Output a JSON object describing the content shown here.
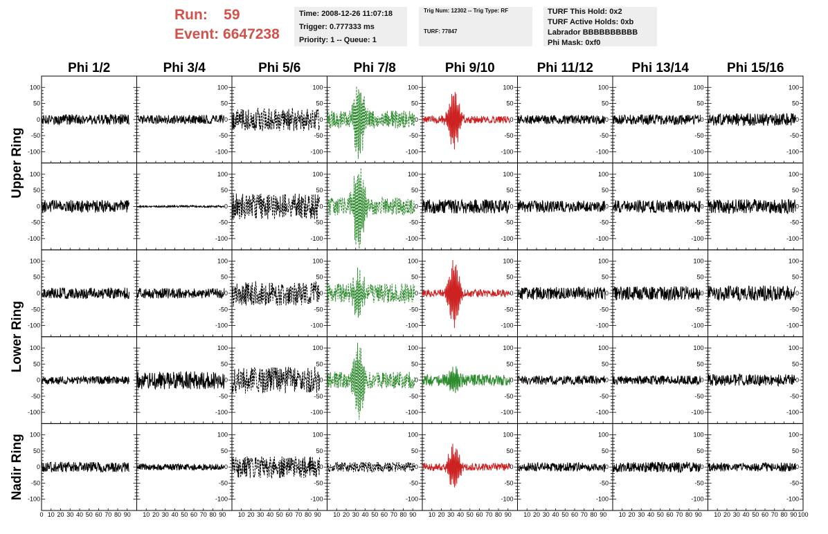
{
  "header": {
    "run_label": "Run:",
    "run_value": "59",
    "event_label": "Event:",
    "event_value": "6647238",
    "time": "Time: 2008-12-26 11:07:18",
    "trigger": "Trigger: 0.777333 ms",
    "priority": "Priority: 1 -- Queue: 1",
    "trig_num": "Trig Num: 12302 -- Trig Type: RF",
    "turf": "TURF: 77847",
    "turf_this_hold": "TURF This Hold: 0x2",
    "turf_active_holds": "TURF Active Holds: 0xb",
    "labrador": "Labrador BBBBBBBBBB",
    "phi_mask": "Phi Mask: 0xf0"
  },
  "colors": {
    "title_red": "#d0524b",
    "waveform_black": "#000000",
    "waveform_green": "#2e8b2e",
    "waveform_red": "#cc2222",
    "info_bg": "#eeeeee"
  },
  "chart_data": {
    "type": "line",
    "columns": [
      "Phi 1/2",
      "Phi 3/4",
      "Phi 5/6",
      "Phi 7/8",
      "Phi 9/10",
      "Phi 11/12",
      "Phi 13/14",
      "Phi 15/16"
    ],
    "rows": [
      "Upper Ring",
      "Upper Ring",
      "Lower Ring",
      "Lower Ring",
      "Nadir Ring"
    ],
    "row_labels": [
      "Upper Ring",
      "Lower Ring",
      "Nadir Ring"
    ],
    "xlim": [
      0,
      100
    ],
    "x_ticks": [
      "0",
      "10",
      "20",
      "30",
      "40",
      "50",
      "60",
      "70",
      "80",
      "90",
      "100"
    ],
    "y_ticks": [
      "100",
      "50",
      "0",
      "-50",
      "-100"
    ],
    "ylim": [
      -135,
      135
    ],
    "panels": [
      [
        {
          "style": "solid",
          "color": "black",
          "amp": 16,
          "pulse": 0,
          "seed": 1
        },
        {
          "style": "solid",
          "color": "black",
          "amp": 14,
          "pulse": 0,
          "seed": 2
        },
        {
          "style": "dotted",
          "color": "black",
          "amp": 36,
          "pulse": 0,
          "seed": 3
        },
        {
          "style": "dotted",
          "color": "green",
          "amp": 28,
          "pulse": 110,
          "seed": 4
        },
        {
          "style": "solid",
          "color": "red",
          "amp": 12,
          "pulse": 90,
          "seed": 5
        },
        {
          "style": "solid",
          "color": "black",
          "amp": 14,
          "pulse": 0,
          "seed": 6
        },
        {
          "style": "solid",
          "color": "black",
          "amp": 16,
          "pulse": 0,
          "seed": 7
        },
        {
          "style": "solid",
          "color": "black",
          "amp": 20,
          "pulse": 0,
          "seed": 8
        }
      ],
      [
        {
          "style": "solid",
          "color": "black",
          "amp": 20,
          "pulse": 0,
          "seed": 11
        },
        {
          "style": "solid",
          "color": "black",
          "amp": 3,
          "pulse": 0,
          "seed": 12
        },
        {
          "style": "dotted",
          "color": "black",
          "amp": 40,
          "pulse": 0,
          "seed": 13
        },
        {
          "style": "dotted",
          "color": "green",
          "amp": 28,
          "pulse": 130,
          "seed": 14
        },
        {
          "style": "solid",
          "color": "black",
          "amp": 22,
          "pulse": 0,
          "seed": 15
        },
        {
          "style": "solid",
          "color": "black",
          "amp": 18,
          "pulse": 0,
          "seed": 16
        },
        {
          "style": "solid",
          "color": "black",
          "amp": 20,
          "pulse": 0,
          "seed": 17
        },
        {
          "style": "solid",
          "color": "black",
          "amp": 22,
          "pulse": 0,
          "seed": 18
        }
      ],
      [
        {
          "style": "solid",
          "color": "black",
          "amp": 18,
          "pulse": 0,
          "seed": 21
        },
        {
          "style": "solid",
          "color": "black",
          "amp": 16,
          "pulse": 0,
          "seed": 22
        },
        {
          "style": "dotted",
          "color": "black",
          "amp": 38,
          "pulse": 0,
          "seed": 23
        },
        {
          "style": "dotted",
          "color": "green",
          "amp": 30,
          "pulse": 60,
          "seed": 24
        },
        {
          "style": "solid",
          "color": "red",
          "amp": 12,
          "pulse": 100,
          "seed": 25
        },
        {
          "style": "solid",
          "color": "black",
          "amp": 20,
          "pulse": 0,
          "seed": 26
        },
        {
          "style": "solid",
          "color": "black",
          "amp": 22,
          "pulse": 0,
          "seed": 27
        },
        {
          "style": "solid",
          "color": "black",
          "amp": 24,
          "pulse": 0,
          "seed": 28
        }
      ],
      [
        {
          "style": "solid",
          "color": "black",
          "amp": 12,
          "pulse": 0,
          "seed": 31
        },
        {
          "style": "solid",
          "color": "black",
          "amp": 28,
          "pulse": 0,
          "seed": 32
        },
        {
          "style": "dotted",
          "color": "black",
          "amp": 42,
          "pulse": 0,
          "seed": 33
        },
        {
          "style": "dotted",
          "color": "green",
          "amp": 26,
          "pulse": 110,
          "seed": 34
        },
        {
          "style": "solid",
          "color": "green",
          "amp": 18,
          "pulse": 35,
          "seed": 35
        },
        {
          "style": "solid",
          "color": "black",
          "amp": 14,
          "pulse": 0,
          "seed": 36
        },
        {
          "style": "solid",
          "color": "black",
          "amp": 14,
          "pulse": 0,
          "seed": 37
        },
        {
          "style": "solid",
          "color": "black",
          "amp": 18,
          "pulse": 0,
          "seed": 38
        }
      ],
      [
        {
          "style": "solid",
          "color": "black",
          "amp": 16,
          "pulse": 0,
          "seed": 41
        },
        {
          "style": "solid",
          "color": "black",
          "amp": 10,
          "pulse": 0,
          "seed": 42
        },
        {
          "style": "dotted",
          "color": "black",
          "amp": 34,
          "pulse": 0,
          "seed": 43
        },
        {
          "style": "dotted",
          "color": "black",
          "amp": 16,
          "pulse": 0,
          "seed": 44
        },
        {
          "style": "solid",
          "color": "red",
          "amp": 12,
          "pulse": 70,
          "seed": 45
        },
        {
          "style": "solid",
          "color": "black",
          "amp": 14,
          "pulse": 0,
          "seed": 46
        },
        {
          "style": "solid",
          "color": "black",
          "amp": 16,
          "pulse": 0,
          "seed": 47
        },
        {
          "style": "solid",
          "color": "black",
          "amp": 14,
          "pulse": 0,
          "seed": 48
        }
      ]
    ]
  }
}
